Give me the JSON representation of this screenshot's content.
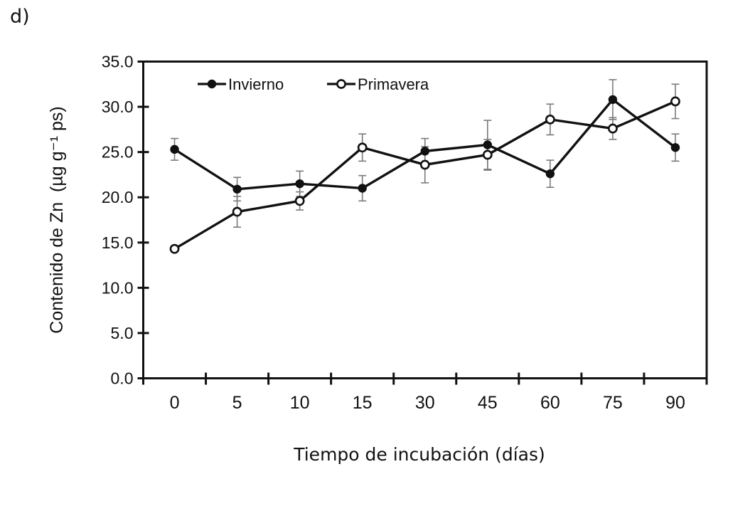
{
  "panel_label": "d)",
  "chart_data": {
    "type": "line",
    "x_categories": [
      "0",
      "5",
      "10",
      "15",
      "30",
      "45",
      "60",
      "75",
      "90"
    ],
    "series": [
      {
        "name": "Invierno",
        "marker": "filled-circle",
        "values": [
          25.3,
          20.9,
          21.5,
          21.0,
          25.1,
          25.8,
          22.6,
          30.8,
          25.5
        ],
        "errors": [
          1.2,
          1.3,
          1.4,
          1.4,
          1.4,
          2.7,
          1.5,
          2.2,
          1.5
        ]
      },
      {
        "name": "Primavera",
        "marker": "open-circle",
        "values": [
          14.3,
          18.4,
          19.6,
          25.5,
          23.6,
          24.7,
          28.6,
          27.6,
          30.6
        ],
        "errors": [
          0.3,
          1.7,
          1.0,
          1.5,
          2.0,
          1.7,
          1.7,
          1.2,
          1.9
        ]
      }
    ],
    "xlabel": "Tiempo de incubación (días)",
    "ylabel": "Contenido de Zn  (µg g⁻¹ ps)",
    "y_ticks": [
      "0.0",
      "5.0",
      "10.0",
      "15.0",
      "20.0",
      "25.0",
      "30.0",
      "35.0"
    ],
    "ylim": [
      0,
      35
    ],
    "grid": false,
    "legend_position": "top-inside",
    "colors": {
      "line": "#111111",
      "marker_fill_invierno": "#111111",
      "marker_fill_primavera": "#ffffff",
      "error_bar": "#7a7a7a",
      "background": "#ffffff"
    }
  }
}
